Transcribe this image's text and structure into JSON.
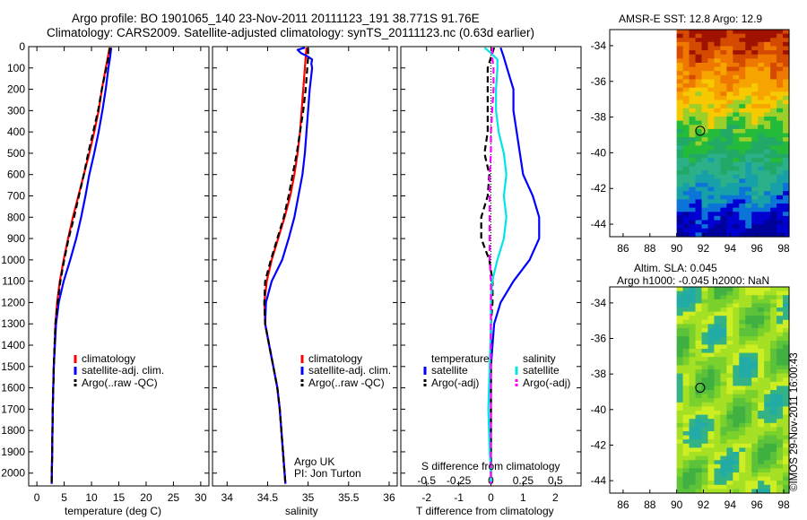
{
  "title": {
    "line1": "Argo profile: BO 1901065_140 23-Nov-2011 20111123_191 38.771S 91.76E",
    "line2": "Climatology: CARS2009. Satellite-adjusted climatology: synTS_20111123.nc (0.63d earlier)"
  },
  "credit": {
    "org": "Argo UK",
    "pi": "PI: Jon Turton"
  },
  "stamp": "©IMOS 29-Nov-2011 16:00:43",
  "colors": {
    "climatology": "#ff0000",
    "satellite": "#0000ff",
    "argo": "#000000",
    "satellite_s": "#00e5e5",
    "argo_s": "#ff00ff"
  },
  "chart_data": [
    {
      "type": "line",
      "panel": "temperature",
      "xlabel": "temperature (deg C)",
      "xticks": [
        0,
        5,
        10,
        15,
        20,
        25,
        30
      ],
      "xlim": [
        -1.5,
        31.5
      ],
      "ylim": [
        2060,
        0
      ],
      "yticks": [
        0,
        100,
        200,
        300,
        400,
        500,
        600,
        700,
        800,
        900,
        1000,
        1100,
        1200,
        1300,
        1400,
        1500,
        1600,
        1700,
        1800,
        1900,
        2000
      ],
      "legend": [
        "climatology",
        "satellite-adj. clim.",
        "Argo(..raw -QC)"
      ],
      "series": [
        {
          "name": "climatology",
          "style": "solid",
          "color": "#ff0000",
          "depth": [
            5,
            50,
            100,
            200,
            300,
            400,
            500,
            600,
            700,
            800,
            900,
            1000,
            1100,
            1200,
            1300,
            1500,
            1700,
            1900,
            2050
          ],
          "values": [
            13.3,
            13.0,
            12.6,
            11.9,
            11.3,
            10.5,
            9.6,
            8.6,
            7.6,
            6.6,
            5.7,
            4.9,
            4.2,
            3.7,
            3.4,
            3.1,
            2.9,
            2.8,
            2.7
          ]
        },
        {
          "name": "satellite-adj. clim.",
          "style": "solid",
          "color": "#0000ff",
          "depth": [
            5,
            50,
            100,
            200,
            300,
            400,
            500,
            600,
            700,
            800,
            900,
            1000,
            1100,
            1200,
            1300,
            1500,
            1700,
            1900,
            2050
          ],
          "values": [
            13.6,
            13.4,
            13.1,
            12.6,
            12.0,
            11.3,
            10.5,
            9.6,
            8.9,
            8.1,
            7.2,
            6.1,
            4.9,
            4.0,
            3.5,
            3.1,
            2.9,
            2.8,
            2.7
          ]
        },
        {
          "name": "Argo(..raw -QC)",
          "style": "dashed",
          "color": "#000000",
          "depth": [
            5,
            50,
            100,
            200,
            300,
            400,
            500,
            600,
            700,
            800,
            900,
            1000,
            1100,
            1200,
            1300,
            1500,
            1700,
            1900,
            2050
          ],
          "values": [
            13.4,
            13.1,
            12.7,
            11.9,
            11.2,
            10.3,
            9.4,
            8.6,
            7.7,
            6.8,
            5.8,
            5.0,
            4.3,
            3.8,
            3.4,
            3.1,
            2.9,
            2.8,
            2.7
          ]
        }
      ]
    },
    {
      "type": "line",
      "panel": "salinity",
      "xlabel": "salinity",
      "xticks": [
        34,
        34.5,
        35,
        35.5,
        36
      ],
      "xlim": [
        33.82,
        36.1
      ],
      "ylim": [
        2060,
        0
      ],
      "legend": [
        "climatology",
        "satellite-adj. clim.",
        "Argo(..raw -QC)"
      ],
      "series": [
        {
          "name": "climatology",
          "style": "solid",
          "color": "#ff0000",
          "depth": [
            5,
            50,
            100,
            200,
            300,
            400,
            500,
            600,
            700,
            800,
            900,
            1000,
            1100,
            1200,
            1300,
            1400,
            1500,
            1600,
            1700,
            1800,
            1900,
            2000,
            2050
          ],
          "values": [
            34.98,
            34.97,
            34.96,
            34.94,
            34.92,
            34.9,
            34.87,
            34.83,
            34.78,
            34.71,
            34.63,
            34.55,
            34.49,
            34.46,
            34.47,
            34.52,
            34.57,
            34.62,
            34.65,
            34.67,
            34.69,
            34.71,
            34.72
          ]
        },
        {
          "name": "satellite-adj. clim.",
          "style": "solid",
          "color": "#0000ff",
          "depth": [
            5,
            15,
            30,
            45,
            60,
            80,
            100,
            200,
            300,
            400,
            500,
            600,
            700,
            800,
            900,
            1000,
            1100,
            1200,
            1300,
            1400,
            1500,
            1600,
            1700,
            1800,
            1900,
            2000,
            2050
          ],
          "values": [
            34.96,
            34.87,
            34.91,
            34.99,
            35.05,
            35.04,
            35.05,
            35.02,
            35.0,
            34.98,
            34.96,
            34.93,
            34.88,
            34.83,
            34.76,
            34.68,
            34.55,
            34.48,
            34.47,
            34.52,
            34.57,
            34.62,
            34.65,
            34.67,
            34.69,
            34.71,
            34.72
          ]
        },
        {
          "name": "Argo(..raw -QC)",
          "style": "dashed",
          "color": "#000000",
          "depth": [
            5,
            50,
            100,
            200,
            300,
            400,
            500,
            600,
            700,
            800,
            900,
            1000,
            1100,
            1200,
            1300,
            1400,
            1500,
            1600,
            1700,
            1800,
            1900,
            2000,
            2050
          ],
          "values": [
            35.0,
            35.0,
            34.99,
            34.97,
            34.94,
            34.9,
            34.86,
            34.81,
            34.76,
            34.7,
            34.62,
            34.54,
            34.47,
            34.46,
            34.47,
            34.52,
            34.57,
            34.62,
            34.65,
            34.67,
            34.69,
            34.71,
            34.72
          ]
        }
      ]
    },
    {
      "type": "line",
      "panel": "difference",
      "xlabel": "T difference from climatology",
      "xticks": [
        -2,
        -1,
        0,
        1,
        2
      ],
      "xlim": [
        -2.8,
        2.8
      ],
      "s_axis_label": "S difference from climatology",
      "s_ticks": [
        -0.5,
        -0.25,
        0,
        0.25,
        0.5
      ],
      "s_tick_labels": [
        "-0.5",
        "-0.25",
        "0",
        "0.25",
        "0.5"
      ],
      "ylim": [
        2060,
        0
      ],
      "legend_temperature": {
        "title": "temperature",
        "items": [
          "satellite",
          "Argo(-adj)"
        ]
      },
      "legend_salinity": {
        "title": "salinity",
        "items": [
          "satellite",
          "Argo(-adj)"
        ]
      },
      "series": [
        {
          "name": "temperature satellite",
          "style": "solid",
          "color": "#0000ff",
          "depth": [
            5,
            50,
            100,
            200,
            300,
            400,
            500,
            600,
            700,
            800,
            900,
            1000,
            1100,
            1200,
            1300,
            1500,
            1700,
            1900,
            2050
          ],
          "values": [
            0.3,
            0.4,
            0.5,
            0.7,
            0.7,
            0.8,
            0.9,
            1.0,
            1.3,
            1.5,
            1.5,
            1.2,
            0.7,
            0.3,
            0.1,
            0.0,
            0.0,
            0.0,
            0.0
          ]
        },
        {
          "name": "temperature Argo(-adj)",
          "style": "dashed",
          "color": "#000000",
          "depth": [
            5,
            50,
            100,
            200,
            300,
            400,
            500,
            600,
            700,
            800,
            900,
            1000,
            1100,
            1200,
            1300,
            1500,
            1700,
            1900,
            2050
          ],
          "values": [
            0.1,
            0.0,
            -0.1,
            -0.1,
            -0.1,
            -0.1,
            -0.2,
            -0.05,
            -0.1,
            -0.3,
            -0.3,
            -0.05,
            0.05,
            0.05,
            0.0,
            0.0,
            0.0,
            0.0,
            0.0
          ]
        },
        {
          "name": "salinity satellite",
          "style": "solid",
          "color": "#00e5e5",
          "depth": [
            5,
            30,
            60,
            100,
            200,
            300,
            400,
            500,
            600,
            700,
            800,
            900,
            1000,
            1100,
            1200,
            1300,
            1500,
            1700,
            1900,
            2000,
            2050
          ],
          "values": [
            -0.05,
            0.0,
            0.05,
            0.05,
            0.04,
            0.04,
            0.06,
            0.1,
            0.12,
            0.1,
            0.12,
            0.1,
            0.05,
            0.01,
            0.0,
            0.0,
            -0.01,
            -0.02,
            -0.01,
            0.0,
            0.0
          ]
        },
        {
          "name": "salinity Argo(-adj)",
          "style": "dashed",
          "color": "#ff00ff",
          "depth": [
            5,
            50,
            100,
            200,
            300,
            400,
            500,
            600,
            700,
            800,
            900,
            1000,
            1100,
            1200,
            1300,
            1500,
            1700,
            1900,
            2050
          ],
          "values": [
            0.01,
            0.01,
            0.02,
            0.02,
            0.01,
            0.0,
            0.0,
            -0.01,
            -0.01,
            -0.01,
            -0.01,
            -0.01,
            0.0,
            0.0,
            0.0,
            0.0,
            0.0,
            0.0,
            0.0
          ]
        }
      ]
    },
    {
      "type": "heatmap",
      "panel": "sst-map",
      "title": "AMSR-E SST: 12.8 Argo: 12.9",
      "xticks": [
        86,
        88,
        90,
        92,
        94,
        96,
        98
      ],
      "yticks": [
        -34,
        -36,
        -38,
        -40,
        -42,
        -44
      ],
      "xlim": [
        85,
        98.4
      ],
      "ylim": [
        -44.7,
        -33.1
      ],
      "data_lon_range": [
        90,
        98.4
      ],
      "float_position": {
        "lon": 91.76,
        "lat": -38.771
      },
      "colors": [
        "#a01200",
        "#d34a00",
        "#ee7800",
        "#f6a400",
        "#f7c900",
        "#9ccf2a",
        "#25bb3a",
        "#22a867",
        "#2bb08a",
        "#17a0a8",
        "#0c74d8",
        "#0000d0",
        "#00009a"
      ]
    },
    {
      "type": "heatmap",
      "panel": "sla-map",
      "title_line1": "Altim. SLA: 0.045",
      "title_line2": "Argo h1000: -0.045 h2000: NaN",
      "xticks": [
        86,
        88,
        90,
        92,
        94,
        96,
        98
      ],
      "yticks": [
        -34,
        -36,
        -38,
        -40,
        -42,
        -44
      ],
      "xlim": [
        85,
        98.4
      ],
      "ylim": [
        -44.7,
        -33.1
      ],
      "data_lon_range": [
        90,
        98.4
      ],
      "float_position": {
        "lon": 91.76,
        "lat": -38.771
      },
      "colors": [
        "#40b040",
        "#5cc23a",
        "#7ad12c",
        "#a6e024",
        "#ccee22",
        "#33b286",
        "#23aba6"
      ]
    }
  ]
}
